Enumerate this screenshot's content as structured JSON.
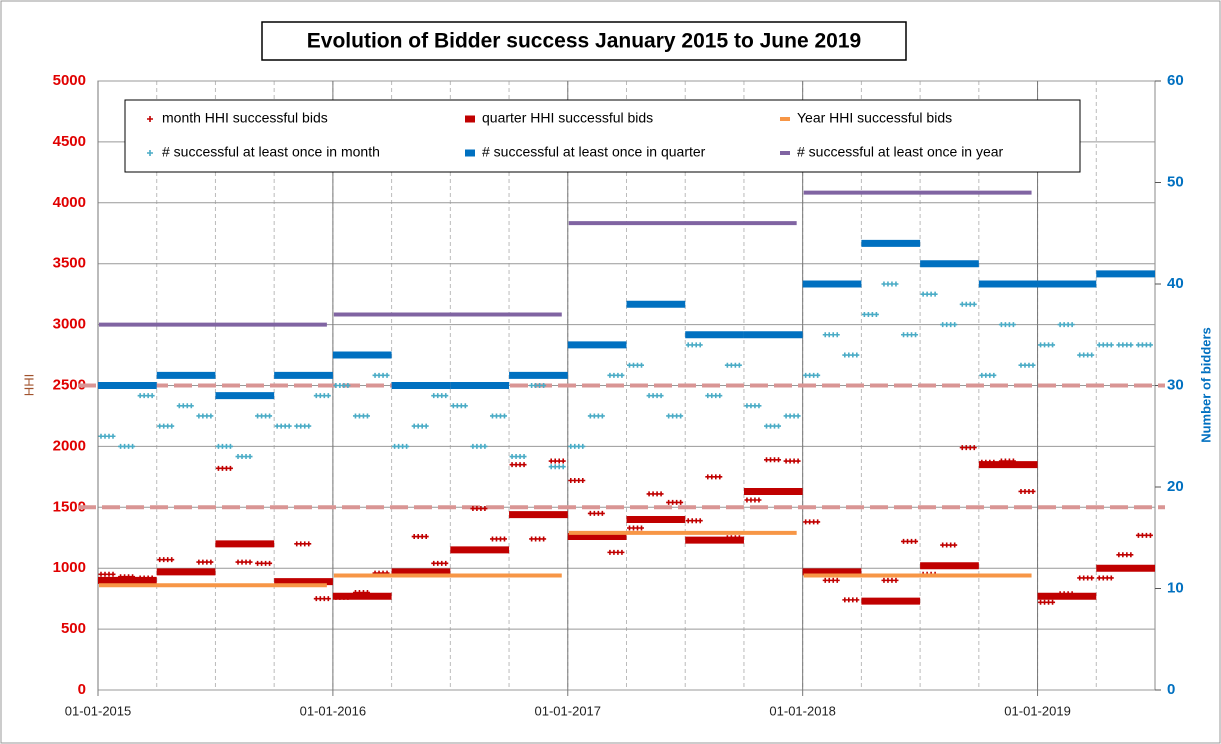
{
  "chart_data": {
    "type": "segments",
    "title": "Evolution of Bidder success January 2015 to June 2019",
    "y_label": "HHI",
    "y2_label": "Number of bidders",
    "xlim": [
      "2015-01-01",
      "2019-07-01"
    ],
    "xticks": [
      {
        "value": "2015-01-01",
        "label": "01-01-2015"
      },
      {
        "value": "2016-01-01",
        "label": "01-01-2016"
      },
      {
        "value": "2017-01-01",
        "label": "01-01-2017"
      },
      {
        "value": "2018-01-01",
        "label": "01-01-2018"
      },
      {
        "value": "2019-01-01",
        "label": "01-01-2019"
      }
    ],
    "ylim": [
      0,
      5000
    ],
    "yticks": [
      0,
      500,
      1000,
      1500,
      2000,
      2500,
      3000,
      3500,
      4000,
      4500,
      5000
    ],
    "y2lim": [
      0,
      60
    ],
    "y2ticks": [
      0,
      10,
      20,
      30,
      40,
      50,
      60
    ],
    "reference_lines": [
      1500,
      2500
    ],
    "reference_color": "#d99594",
    "grid": true,
    "series": [
      {
        "name": "month HHI successful bids",
        "color": "#c00000",
        "marker": "plus",
        "period": "month",
        "x": [
          "2015-01-01",
          "2015-02-01",
          "2015-03-01",
          "2015-04-01",
          "2015-05-01",
          "2015-06-01",
          "2015-07-01",
          "2015-08-01",
          "2015-09-01",
          "2015-10-01",
          "2015-11-01",
          "2015-12-01",
          "2016-01-01",
          "2016-02-01",
          "2016-03-01",
          "2016-04-01",
          "2016-05-01",
          "2016-06-01",
          "2016-07-01",
          "2016-08-01",
          "2016-09-01",
          "2016-10-01",
          "2016-11-01",
          "2016-12-01",
          "2017-01-01",
          "2017-02-01",
          "2017-03-01",
          "2017-04-01",
          "2017-05-01",
          "2017-06-01",
          "2017-07-01",
          "2017-08-01",
          "2017-09-01",
          "2017-10-01",
          "2017-11-01",
          "2017-12-01",
          "2018-01-01",
          "2018-02-01",
          "2018-03-01",
          "2018-04-01",
          "2018-05-01",
          "2018-06-01",
          "2018-07-01",
          "2018-08-01",
          "2018-09-01",
          "2018-10-01",
          "2018-11-01",
          "2018-12-01",
          "2019-01-01",
          "2019-02-01",
          "2019-03-01",
          "2019-04-01",
          "2019-05-01",
          "2019-06-01"
        ],
        "values": [
          950,
          930,
          920,
          1070,
          970,
          1050,
          1820,
          1050,
          1040,
          870,
          1200,
          750,
          760,
          800,
          960,
          970,
          1260,
          1040,
          1150,
          1490,
          1240,
          1850,
          1240,
          1880,
          1720,
          1450,
          1130,
          1330,
          1610,
          1540,
          1390,
          1750,
          1250,
          1560,
          1890,
          1880,
          1380,
          900,
          740,
          730,
          900,
          1220,
          950,
          1190,
          1990,
          1870,
          1880,
          1630,
          720,
          790,
          920,
          920,
          1110,
          1270
        ]
      },
      {
        "name": "quarter HHI successful bids",
        "color": "#c00000",
        "marker": "thick",
        "period": "quarter",
        "x": [
          "2015-01-01",
          "2015-04-01",
          "2015-07-01",
          "2015-10-01",
          "2016-01-01",
          "2016-04-01",
          "2016-07-01",
          "2016-10-01",
          "2017-01-01",
          "2017-04-01",
          "2017-07-01",
          "2017-10-01",
          "2018-01-01",
          "2018-04-01",
          "2018-07-01",
          "2018-10-01",
          "2019-01-01",
          "2019-04-01"
        ],
        "values": [
          900,
          970,
          1200,
          890,
          770,
          970,
          1150,
          1440,
          1260,
          1400,
          1230,
          1630,
          970,
          730,
          1020,
          1850,
          770,
          1000
        ]
      },
      {
        "name": "Year HHI successful bids",
        "color": "#f79646",
        "marker": "line",
        "period": "year",
        "x": [
          "2015-01-01",
          "2016-01-01",
          "2017-01-01",
          "2018-01-01"
        ],
        "values": [
          860,
          940,
          1290,
          940
        ]
      },
      {
        "name": "# successful at least once in month",
        "color": "#4bacc6",
        "marker": "plus",
        "period": "month",
        "axis": "y2",
        "x": [
          "2015-01-01",
          "2015-02-01",
          "2015-03-01",
          "2015-04-01",
          "2015-05-01",
          "2015-06-01",
          "2015-07-01",
          "2015-08-01",
          "2015-09-01",
          "2015-10-01",
          "2015-11-01",
          "2015-12-01",
          "2016-01-01",
          "2016-02-01",
          "2016-03-01",
          "2016-04-01",
          "2016-05-01",
          "2016-06-01",
          "2016-07-01",
          "2016-08-01",
          "2016-09-01",
          "2016-10-01",
          "2016-11-01",
          "2016-12-01",
          "2017-01-01",
          "2017-02-01",
          "2017-03-01",
          "2017-04-01",
          "2017-05-01",
          "2017-06-01",
          "2017-07-01",
          "2017-08-01",
          "2017-09-01",
          "2017-10-01",
          "2017-11-01",
          "2017-12-01",
          "2018-01-01",
          "2018-02-01",
          "2018-03-01",
          "2018-04-01",
          "2018-05-01",
          "2018-06-01",
          "2018-07-01",
          "2018-08-01",
          "2018-09-01",
          "2018-10-01",
          "2018-11-01",
          "2018-12-01",
          "2019-01-01",
          "2019-02-01",
          "2019-03-01",
          "2019-04-01",
          "2019-05-01",
          "2019-06-01"
        ],
        "values": [
          25,
          24,
          29,
          26,
          28,
          27,
          24,
          23,
          27,
          26,
          26,
          29,
          30,
          27,
          31,
          24,
          26,
          29,
          28,
          24,
          27,
          23,
          30,
          22,
          24,
          27,
          31,
          32,
          29,
          27,
          34,
          29,
          32,
          28,
          26,
          27,
          31,
          35,
          33,
          37,
          40,
          35,
          39,
          36,
          38,
          31,
          36,
          32,
          34,
          36,
          33,
          34,
          34,
          34
        ]
      },
      {
        "name": "# successful at least once in quarter",
        "color": "#0070c0",
        "marker": "thick",
        "period": "quarter",
        "axis": "y2",
        "x": [
          "2015-01-01",
          "2015-04-01",
          "2015-07-01",
          "2015-10-01",
          "2016-01-01",
          "2016-04-01",
          "2016-07-01",
          "2016-10-01",
          "2017-01-01",
          "2017-04-01",
          "2017-07-01",
          "2017-10-01",
          "2018-01-01",
          "2018-04-01",
          "2018-07-01",
          "2018-10-01",
          "2019-01-01",
          "2019-04-01"
        ],
        "values": [
          30,
          31,
          29,
          31,
          33,
          30,
          30,
          31,
          34,
          38,
          35,
          35,
          40,
          44,
          42,
          40,
          40,
          41
        ]
      },
      {
        "name": "# successful at least once in year",
        "color": "#8064a2",
        "marker": "line",
        "period": "year",
        "axis": "y2",
        "x": [
          "2015-01-01",
          "2016-01-01",
          "2017-01-01",
          "2018-01-01"
        ],
        "values": [
          36,
          37,
          46,
          49
        ]
      }
    ]
  }
}
